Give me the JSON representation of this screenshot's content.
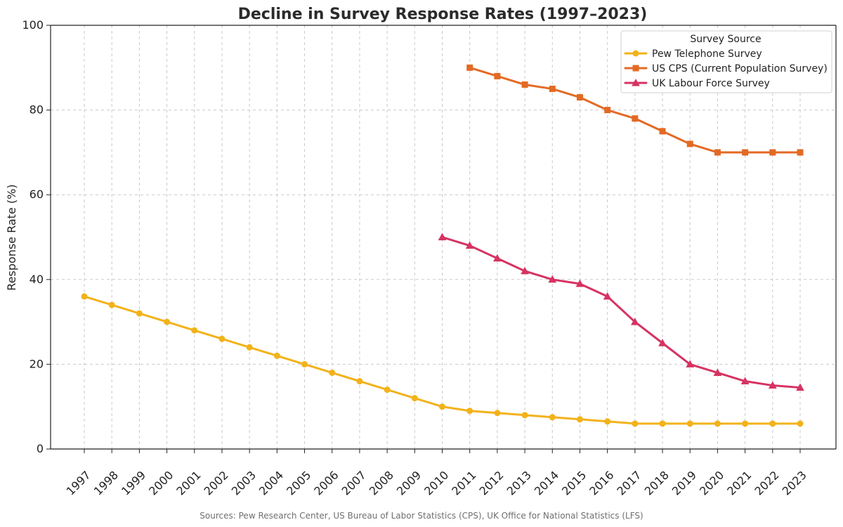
{
  "chart_data": {
    "type": "line",
    "title": "Decline in Survey Response Rates (1997–2023)",
    "xlabel": "",
    "ylabel": "Response Rate (%)",
    "x": [
      1997,
      1998,
      1999,
      2000,
      2001,
      2002,
      2003,
      2004,
      2005,
      2006,
      2007,
      2008,
      2009,
      2010,
      2011,
      2012,
      2013,
      2014,
      2015,
      2016,
      2017,
      2018,
      2019,
      2020,
      2021,
      2022,
      2023
    ],
    "x_tick_labels": [
      "1997",
      "1998",
      "1999",
      "2000",
      "2001",
      "2002",
      "2003",
      "2004",
      "2005",
      "2006",
      "2007",
      "2008",
      "2009",
      "2010",
      "2011",
      "2012",
      "2013",
      "2014",
      "2015",
      "2016",
      "2017",
      "2018",
      "2019",
      "2020",
      "2021",
      "2022",
      "2023"
    ],
    "y_ticks": [
      0,
      20,
      40,
      60,
      80,
      100
    ],
    "y_tick_labels": [
      "0",
      "20",
      "40",
      "60",
      "80",
      "100"
    ],
    "xlim": [
      1997,
      2023
    ],
    "ylim": [
      0,
      100
    ],
    "grid": true,
    "legend": {
      "title": "Survey Source",
      "position": "top-right"
    },
    "series": [
      {
        "name": "Pew Telephone Survey",
        "color": "#F2B21A",
        "marker": "circle",
        "points": [
          [
            1997,
            36
          ],
          [
            1998,
            34
          ],
          [
            1999,
            32
          ],
          [
            2000,
            30
          ],
          [
            2001,
            28
          ],
          [
            2002,
            26
          ],
          [
            2003,
            24
          ],
          [
            2004,
            22
          ],
          [
            2005,
            20
          ],
          [
            2006,
            18
          ],
          [
            2007,
            16
          ],
          [
            2008,
            14
          ],
          [
            2009,
            12
          ],
          [
            2010,
            10
          ],
          [
            2011,
            9
          ],
          [
            2012,
            8.5
          ],
          [
            2013,
            8
          ],
          [
            2014,
            7.5
          ],
          [
            2015,
            7
          ],
          [
            2016,
            6.5
          ],
          [
            2017,
            6
          ],
          [
            2018,
            6
          ],
          [
            2019,
            6
          ],
          [
            2020,
            6
          ],
          [
            2021,
            6
          ],
          [
            2022,
            6
          ],
          [
            2023,
            6
          ]
        ]
      },
      {
        "name": "US CPS (Current Population Survey)",
        "color": "#E36A24",
        "marker": "square",
        "points": [
          [
            2011,
            90
          ],
          [
            2012,
            88
          ],
          [
            2013,
            86
          ],
          [
            2014,
            85
          ],
          [
            2015,
            83
          ],
          [
            2016,
            80
          ],
          [
            2017,
            78
          ],
          [
            2018,
            75
          ],
          [
            2019,
            72
          ],
          [
            2020,
            70
          ],
          [
            2021,
            70
          ],
          [
            2022,
            70
          ],
          [
            2023,
            70
          ]
        ]
      },
      {
        "name": "UK Labour Force Survey",
        "color": "#D63362",
        "marker": "triangle",
        "points": [
          [
            2010,
            50
          ],
          [
            2011,
            48
          ],
          [
            2012,
            45
          ],
          [
            2013,
            42
          ],
          [
            2014,
            40
          ],
          [
            2015,
            39
          ],
          [
            2016,
            36
          ],
          [
            2017,
            30
          ],
          [
            2018,
            25
          ],
          [
            2019,
            20
          ],
          [
            2020,
            18
          ],
          [
            2021,
            16
          ],
          [
            2022,
            15
          ],
          [
            2023,
            14.5
          ]
        ]
      }
    ],
    "annotations": [
      "Sources: Pew Research Center, US Bureau of Labor Statistics (CPS), UK Office for National Statistics (LFS)"
    ]
  }
}
